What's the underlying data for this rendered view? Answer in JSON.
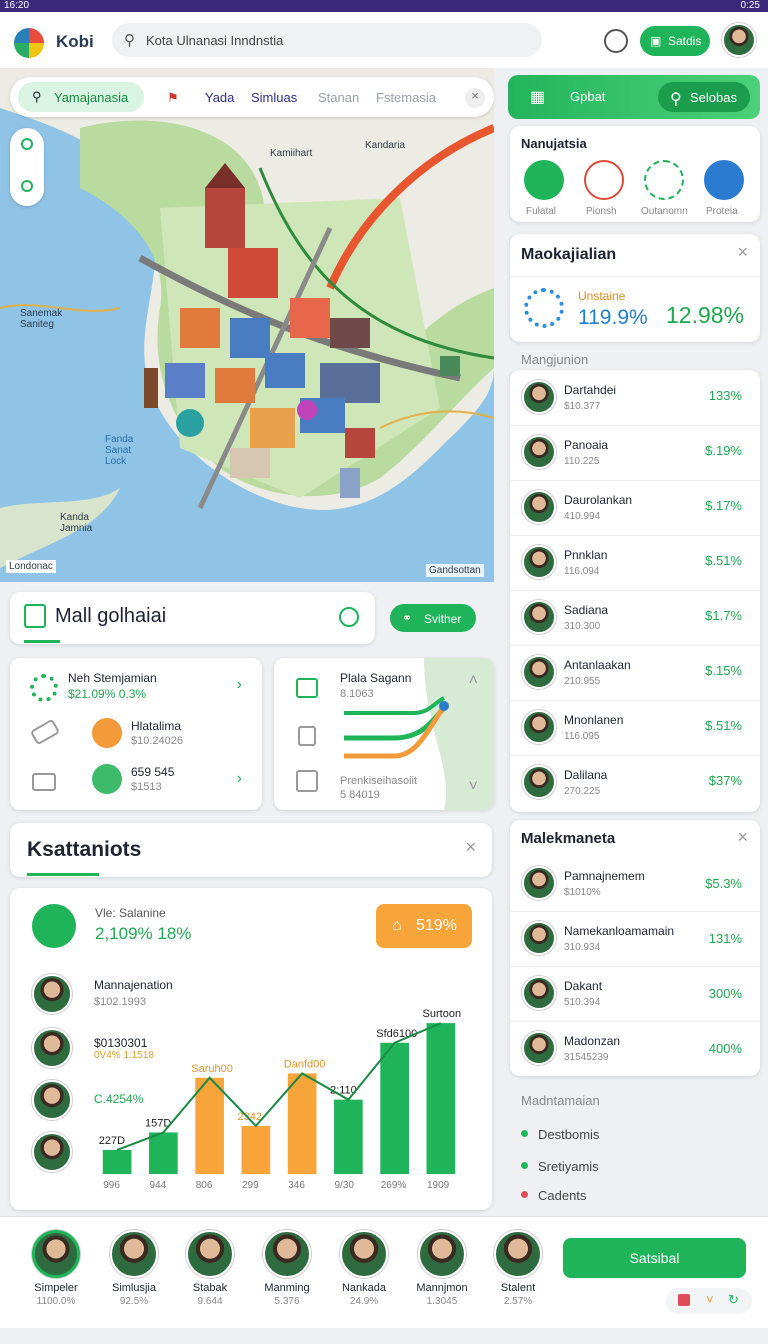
{
  "status_bar": {
    "time": "16:20",
    "right_time": "0:25"
  },
  "header": {
    "app_name": "Kobi",
    "search_placeholder": "Kota Ulnanasi Inndnstia",
    "action_label": "Satdis"
  },
  "map": {
    "tabs": [
      "Yamajanasia",
      "Yada",
      "Simluas",
      "Stanan",
      "Fstemasia"
    ],
    "labels": {
      "kamimart": "Kamiihart",
      "kandaria": "Kandaria",
      "sanemak": "Sanemak Saniteg",
      "fanda": "Fanda Sanat Lock",
      "kanda": "Kanda Jamnia",
      "bottom_left": "Londonac",
      "bottom_right": "Gandsottan"
    }
  },
  "right_panel": {
    "top_tab": "Gpbat",
    "top_button": "Selobas",
    "categories_title": "Nanujatsia",
    "categories": [
      {
        "label": "Fulatal",
        "icon": "grid-icon",
        "color": "#1fb45a"
      },
      {
        "label": "Pionsh",
        "icon": "bell-icon",
        "color": "#e04b3a"
      },
      {
        "label": "Outanomn",
        "icon": "tree-icon",
        "color": "#1fb45a"
      },
      {
        "label": "Proteia",
        "icon": "wave-icon",
        "color": "#2b7bd1"
      }
    ],
    "stat_card": {
      "title": "Maokajialian",
      "label": "Unstaine",
      "value_a": "119.9%",
      "value_b": "12.98%"
    },
    "list_title": "Mangjunion",
    "list": [
      {
        "name": "Dartahdei",
        "sub": "$10.377",
        "value": "133%"
      },
      {
        "name": "Panoaia",
        "sub": "110.225",
        "value": "$.19%"
      },
      {
        "name": "Daurolankan",
        "sub": "410.994",
        "value": "$.17%"
      },
      {
        "name": "Pnnklan",
        "sub": "116.094",
        "value": "$.51%"
      },
      {
        "name": "Sadiana",
        "sub": "310.300",
        "value": "$1.7%"
      },
      {
        "name": "Antanlaakan",
        "sub": "210.955",
        "value": "$.15%"
      },
      {
        "name": "Mnonlanen",
        "sub": "116.095",
        "value": "$.51%"
      },
      {
        "name": "Dalilana",
        "sub": "270.225",
        "value": "$37%"
      }
    ],
    "second_title": "Malekmaneta",
    "second_list": [
      {
        "name": "Pamnajnemem",
        "sub": "$1010%",
        "value": "$5.3%"
      },
      {
        "name": "Namekanloamamain",
        "sub": "310.934",
        "value": "131%"
      },
      {
        "name": "Dakant",
        "sub": "510.394",
        "value": "300%"
      },
      {
        "name": "Madonzan",
        "sub": "31545239",
        "value": "400%"
      }
    ],
    "legend_title": "Madntamaian",
    "legend": [
      {
        "label": "Destbomis",
        "color": "#1fb45a"
      },
      {
        "label": "Sretiyamis",
        "color": "#1fb45a"
      },
      {
        "label": "Cadents",
        "color": "#e04b5a"
      }
    ]
  },
  "mall": {
    "title": "Mall golhaiai",
    "button": "Svither"
  },
  "panel_a": {
    "row1_title": "Neh Stemjamian",
    "row1_value": "$21.09% 0.3%",
    "row2_title": "Hlatalima",
    "row2_value": "$10.24026",
    "row3_title": "659 545",
    "row3_value": "$1513"
  },
  "panel_b": {
    "title": "Plala Sagann",
    "value": "8.1063",
    "bottom_title": "Prenkiseihasoiit",
    "bottom_value": "5 84019"
  },
  "ksattaniots": {
    "title": "Ksattaniots"
  },
  "chart_card": {
    "label": "Vle: Salanine",
    "value": "2,109% 18%",
    "badge": "519%",
    "people": [
      {
        "name": "Mannajenation",
        "sub": "$102.1993"
      },
      {
        "name": "$0130301",
        "sub": "0V4% 1:1518"
      },
      {
        "name": "C.4254%",
        "sub": ""
      }
    ]
  },
  "chart_data": {
    "type": "bar",
    "categories": [
      "996",
      "944",
      "806",
      "299",
      "346",
      "9/30",
      "269%",
      "1909"
    ],
    "series": [
      {
        "values": [
          22,
          38,
          null,
          null,
          null,
          68,
          120,
          138
        ],
        "color": "#1fb45a"
      },
      {
        "values": [
          null,
          null,
          88,
          44,
          92,
          null,
          null,
          null
        ],
        "color": "#f7a53b"
      }
    ],
    "data_labels": [
      "227D",
      "157D",
      "Saruh00",
      "2342",
      "Danfd00",
      "2:110",
      "Sfd6100",
      "Surtoon"
    ]
  },
  "bottom_bar": {
    "people": [
      {
        "name": "Simpeler",
        "sub": "1100.0%"
      },
      {
        "name": "Simlusjia",
        "sub": "92.5%"
      },
      {
        "name": "Stabak",
        "sub": "9.644"
      },
      {
        "name": "Manming",
        "sub": "5.376"
      },
      {
        "name": "Nankada",
        "sub": "24.9%"
      },
      {
        "name": "Mannjmon",
        "sub": "1.3045"
      },
      {
        "name": "Stalent",
        "sub": "2.57%"
      }
    ],
    "button": "Satsibal"
  }
}
